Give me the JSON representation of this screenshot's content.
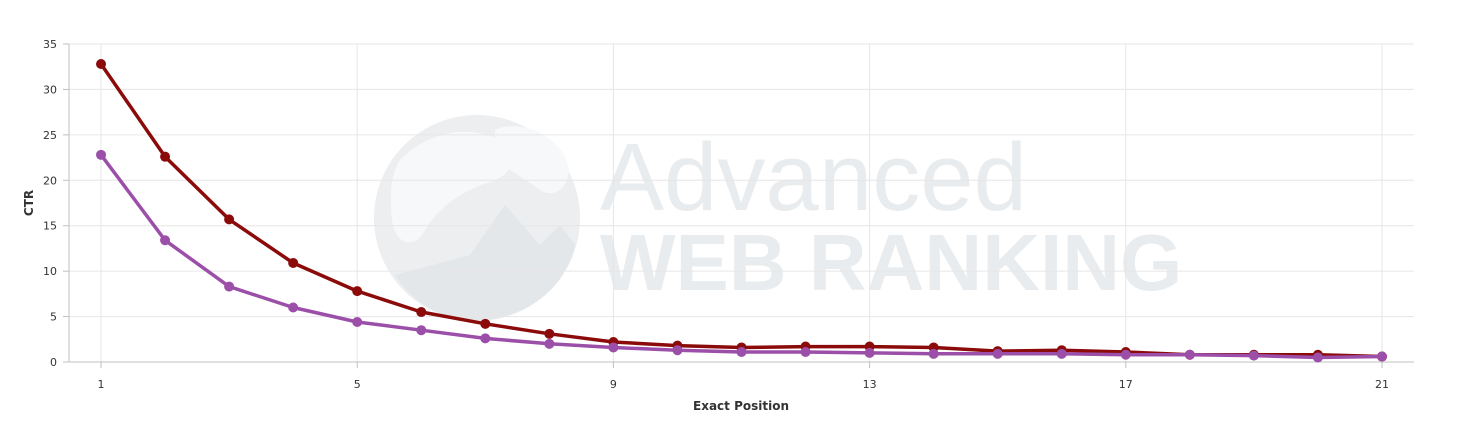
{
  "chart_data": {
    "type": "line",
    "ylabel": "CTR",
    "xlabel": "Exact Position",
    "ylim": [
      0,
      35
    ],
    "yticks": [
      0,
      5,
      10,
      15,
      20,
      25,
      30,
      35
    ],
    "xlim": [
      0.5,
      21.5
    ],
    "xticks": [
      1,
      5,
      9,
      13,
      17,
      21
    ],
    "grid": true,
    "legend": "none",
    "x": [
      1,
      2,
      3,
      4,
      5,
      6,
      7,
      8,
      9,
      10,
      11,
      12,
      13,
      14,
      15,
      16,
      17,
      18,
      19,
      20,
      21
    ],
    "series": [
      {
        "color": "#8b0a0a",
        "values": [
          32.8,
          22.6,
          15.7,
          10.9,
          7.8,
          5.5,
          4.2,
          3.1,
          2.2,
          1.8,
          1.6,
          1.7,
          1.7,
          1.6,
          1.2,
          1.3,
          1.1,
          0.8,
          0.8,
          0.8,
          0.6
        ]
      },
      {
        "color": "#9b4fa8",
        "values": [
          22.8,
          13.4,
          8.3,
          6.0,
          4.4,
          3.5,
          2.6,
          2.0,
          1.6,
          1.3,
          1.1,
          1.1,
          1.0,
          0.9,
          0.9,
          0.9,
          0.8,
          0.8,
          0.7,
          0.5,
          0.6
        ]
      }
    ]
  },
  "watermark": {
    "line1": "Advanced",
    "line2": "WEB RANKING",
    "icon": "globe-icon"
  }
}
